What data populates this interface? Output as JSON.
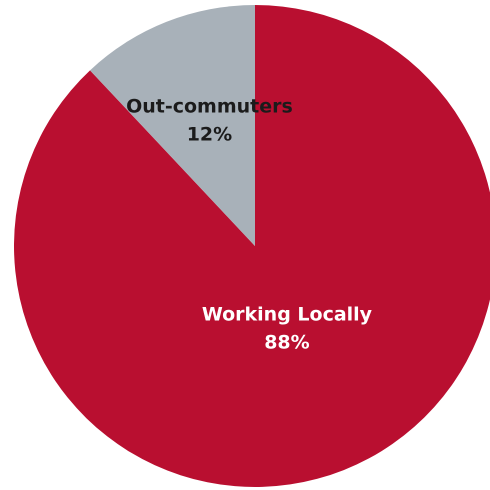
{
  "chart_data": {
    "type": "pie",
    "title": "",
    "slices": [
      {
        "name": "Working Locally",
        "value": 88,
        "display_value": "88%",
        "color": "#b90f30",
        "label_color": "#ffffff"
      },
      {
        "name": "Out-commuters",
        "value": 12,
        "display_value": "12%",
        "color": "#a8b1b9",
        "label_color": "#1b1b1b"
      }
    ],
    "start_angle_deg": 0,
    "direction": "clockwise",
    "legend": "none"
  }
}
